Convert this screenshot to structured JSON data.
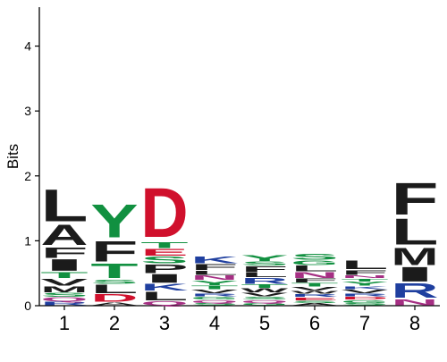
{
  "chart_data": {
    "type": "sequence-logo",
    "ylabel": "Bits",
    "ylim": [
      0,
      4.6
    ],
    "yticks": [
      "0",
      "1",
      "2",
      "3",
      "4"
    ],
    "categories": [
      "1",
      "2",
      "3",
      "4",
      "5",
      "6",
      "7",
      "8"
    ],
    "colors": {
      "hydrophobic": "#1b1b1b",
      "polar": "#119040",
      "acidic": "#d0102c",
      "basic": "#1f3f9f",
      "amide": "#a52f83"
    },
    "residue_classes": {
      "A": "hydrophobic",
      "V": "hydrophobic",
      "L": "hydrophobic",
      "I": "hydrophobic",
      "M": "hydrophobic",
      "F": "hydrophobic",
      "W": "hydrophobic",
      "P": "hydrophobic",
      "G": "polar",
      "S": "polar",
      "T": "polar",
      "Y": "polar",
      "C": "polar",
      "D": "acidic",
      "E": "acidic",
      "K": "basic",
      "R": "basic",
      "H": "basic",
      "N": "amide",
      "Q": "amide"
    },
    "stacks": [
      {
        "position": "1",
        "letters": [
          {
            "aa": "R",
            "bits": 0.06
          },
          {
            "aa": "Q",
            "bits": 0.07
          },
          {
            "aa": "S",
            "bits": 0.07
          },
          {
            "aa": "M",
            "bits": 0.1
          },
          {
            "aa": "V",
            "bits": 0.12
          },
          {
            "aa": "T",
            "bits": 0.1
          },
          {
            "aa": "I",
            "bits": 0.2
          },
          {
            "aa": "F",
            "bits": 0.18
          },
          {
            "aa": "A",
            "bits": 0.35
          },
          {
            "aa": "L",
            "bits": 0.55
          }
        ]
      },
      {
        "position": "2",
        "letters": [
          {
            "aa": "A",
            "bits": 0.05
          },
          {
            "aa": "D",
            "bits": 0.13
          },
          {
            "aa": "L",
            "bits": 0.15
          },
          {
            "aa": "S",
            "bits": 0.07
          },
          {
            "aa": "T",
            "bits": 0.25
          },
          {
            "aa": "F",
            "bits": 0.35
          },
          {
            "aa": "Y",
            "bits": 0.57
          }
        ]
      },
      {
        "position": "3",
        "letters": [
          {
            "aa": "Q",
            "bits": 0.07
          },
          {
            "aa": "L",
            "bits": 0.15
          },
          {
            "aa": "K",
            "bits": 0.12
          },
          {
            "aa": "I",
            "bits": 0.15
          },
          {
            "aa": "P",
            "bits": 0.15
          },
          {
            "aa": "S",
            "bits": 0.12
          },
          {
            "aa": "E",
            "bits": 0.12
          },
          {
            "aa": "T",
            "bits": 0.1
          },
          {
            "aa": "D",
            "bits": 0.85
          }
        ]
      },
      {
        "position": "4",
        "letters": [
          {
            "aa": "S",
            "bits": 0.04
          },
          {
            "aa": "Q",
            "bits": 0.05
          },
          {
            "aa": "G",
            "bits": 0.05
          },
          {
            "aa": "R",
            "bits": 0.05
          },
          {
            "aa": "V",
            "bits": 0.06
          },
          {
            "aa": "T",
            "bits": 0.06
          },
          {
            "aa": "Y",
            "bits": 0.08
          },
          {
            "aa": "N",
            "bits": 0.08
          },
          {
            "aa": "L",
            "bits": 0.07
          },
          {
            "aa": "F",
            "bits": 0.1
          },
          {
            "aa": "K",
            "bits": 0.12
          }
        ]
      },
      {
        "position": "5",
        "letters": [
          {
            "aa": "G",
            "bits": 0.04
          },
          {
            "aa": "Q",
            "bits": 0.05
          },
          {
            "aa": "S",
            "bits": 0.05
          },
          {
            "aa": "V",
            "bits": 0.06
          },
          {
            "aa": "W",
            "bits": 0.07
          },
          {
            "aa": "T",
            "bits": 0.06
          },
          {
            "aa": "R",
            "bits": 0.1
          },
          {
            "aa": "L",
            "bits": 0.08
          },
          {
            "aa": "F",
            "bits": 0.1
          },
          {
            "aa": "S",
            "bits": 0.07
          },
          {
            "aa": "Y",
            "bits": 0.1
          }
        ]
      },
      {
        "position": "6",
        "letters": [
          {
            "aa": "A",
            "bits": 0.04
          },
          {
            "aa": "S",
            "bits": 0.04
          },
          {
            "aa": "E",
            "bits": 0.05
          },
          {
            "aa": "R",
            "bits": 0.05
          },
          {
            "aa": "W",
            "bits": 0.05
          },
          {
            "aa": "V",
            "bits": 0.06
          },
          {
            "aa": "T",
            "bits": 0.06
          },
          {
            "aa": "F",
            "bits": 0.07
          },
          {
            "aa": "N",
            "bits": 0.1
          },
          {
            "aa": "L",
            "bits": 0.1
          },
          {
            "aa": "G",
            "bits": 0.08
          },
          {
            "aa": "S",
            "bits": 0.1
          }
        ]
      },
      {
        "position": "7",
        "letters": [
          {
            "aa": "S",
            "bits": 0.04
          },
          {
            "aa": "G",
            "bits": 0.05
          },
          {
            "aa": "D",
            "bits": 0.05
          },
          {
            "aa": "R",
            "bits": 0.05
          },
          {
            "aa": "V",
            "bits": 0.06
          },
          {
            "aa": "K",
            "bits": 0.05
          },
          {
            "aa": "Y",
            "bits": 0.07
          },
          {
            "aa": "T",
            "bits": 0.05
          },
          {
            "aa": "N",
            "bits": 0.05
          },
          {
            "aa": "F",
            "bits": 0.08
          },
          {
            "aa": "L",
            "bits": 0.15
          }
        ]
      },
      {
        "position": "8",
        "letters": [
          {
            "aa": "N",
            "bits": 0.1
          },
          {
            "aa": "R",
            "bits": 0.25
          },
          {
            "aa": "I",
            "bits": 0.25
          },
          {
            "aa": "M",
            "bits": 0.3
          },
          {
            "aa": "L",
            "bits": 0.45
          },
          {
            "aa": "F",
            "bits": 0.55
          }
        ]
      }
    ]
  }
}
